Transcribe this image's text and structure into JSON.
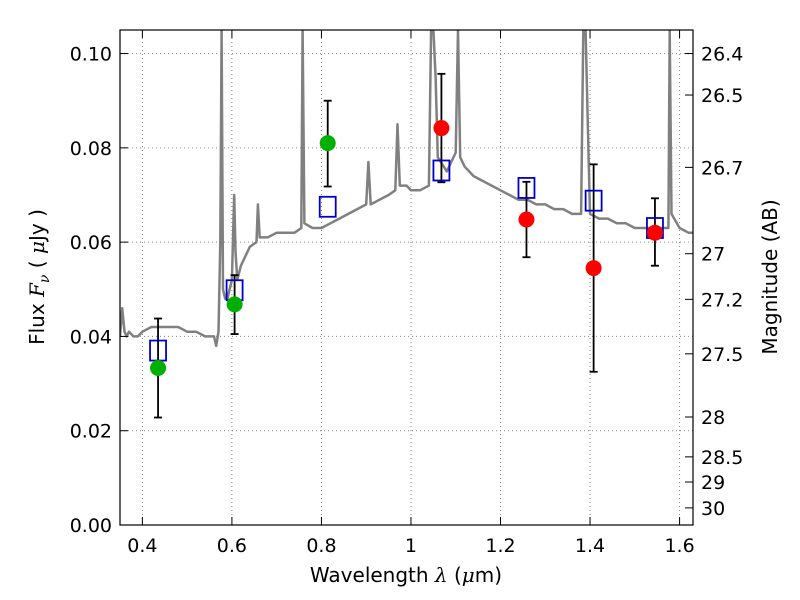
{
  "chart_data": {
    "type": "scatter",
    "xlabel": "Wavelength  λ (μm)",
    "ylabel": "Flux  F_ν  ( μJy )",
    "y2label": "Magnitude (AB)",
    "xlim": [
      0.35,
      1.63
    ],
    "ylim": [
      0.0,
      0.105
    ],
    "grid": true,
    "x_ticks": [
      "0.4",
      "0.6",
      "0.8",
      "1",
      "1.2",
      "1.4",
      "1.6"
    ],
    "x_tick_values": [
      0.4,
      0.6,
      0.8,
      1.0,
      1.2,
      1.4,
      1.6
    ],
    "y_ticks": [
      "0.00",
      "0.02",
      "0.04",
      "0.06",
      "0.08",
      "0.10"
    ],
    "y_tick_values": [
      0.0,
      0.02,
      0.04,
      0.06,
      0.08,
      0.1
    ],
    "mag_ticks": [
      "26.4",
      "26.5",
      "26.7",
      "27",
      "27.2",
      "27.5",
      "28",
      "28.5",
      "29",
      "30"
    ],
    "mag_tick_values": [
      26.4,
      26.5,
      26.7,
      27.0,
      27.2,
      27.5,
      28.0,
      28.5,
      29.0,
      30.0
    ],
    "colors": {
      "model": "#808080",
      "optical": "#00b000",
      "infrared": "#ff0000",
      "model_photometry": "#0000cc",
      "errorbar": "#000000",
      "grid": "#888888"
    },
    "series": [
      {
        "role": "observed-optical",
        "points": [
          {
            "x": 0.435,
            "y": 0.0333,
            "ylow": 0.0228,
            "yhigh": 0.0438
          },
          {
            "x": 0.606,
            "y": 0.0468,
            "ylow": 0.0405,
            "yhigh": 0.053
          },
          {
            "x": 0.814,
            "y": 0.081,
            "ylow": 0.0718,
            "yhigh": 0.09
          }
        ]
      },
      {
        "role": "observed-infrared",
        "points": [
          {
            "x": 1.068,
            "y": 0.0842,
            "ylow": 0.0727,
            "yhigh": 0.0957
          },
          {
            "x": 1.258,
            "y": 0.0648,
            "ylow": 0.0568,
            "yhigh": 0.0728
          },
          {
            "x": 1.408,
            "y": 0.0545,
            "ylow": 0.0325,
            "yhigh": 0.0765
          },
          {
            "x": 1.545,
            "y": 0.062,
            "ylow": 0.055,
            "yhigh": 0.0693
          }
        ]
      },
      {
        "role": "model-photometry",
        "points": [
          {
            "x": 0.435,
            "y": 0.037
          },
          {
            "x": 0.606,
            "y": 0.0498
          },
          {
            "x": 0.814,
            "y": 0.0675
          },
          {
            "x": 1.068,
            "y": 0.0752
          },
          {
            "x": 1.258,
            "y": 0.0715
          },
          {
            "x": 1.408,
            "y": 0.0688
          },
          {
            "x": 1.545,
            "y": 0.063
          }
        ]
      }
    ],
    "model_spectrum": {
      "x": [
        0.35,
        0.355,
        0.36,
        0.365,
        0.37,
        0.38,
        0.39,
        0.4,
        0.42,
        0.44,
        0.46,
        0.48,
        0.5,
        0.52,
        0.54,
        0.56,
        0.565,
        0.57,
        0.574,
        0.577,
        0.58,
        0.585,
        0.59,
        0.6,
        0.605,
        0.608,
        0.612,
        0.62,
        0.64,
        0.655,
        0.658,
        0.662,
        0.68,
        0.7,
        0.72,
        0.74,
        0.755,
        0.758,
        0.762,
        0.78,
        0.8,
        0.82,
        0.84,
        0.86,
        0.88,
        0.9,
        0.905,
        0.91,
        0.93,
        0.95,
        0.965,
        0.97,
        0.975,
        0.99,
        1.0,
        1.02,
        1.04,
        1.045,
        1.05,
        1.055,
        1.06,
        1.08,
        1.1,
        1.105,
        1.11,
        1.12,
        1.14,
        1.16,
        1.18,
        1.2,
        1.22,
        1.24,
        1.26,
        1.28,
        1.3,
        1.32,
        1.34,
        1.36,
        1.38,
        1.385,
        1.39,
        1.395,
        1.4,
        1.42,
        1.44,
        1.46,
        1.48,
        1.5,
        1.52,
        1.54,
        1.56,
        1.575,
        1.578,
        1.582,
        1.6,
        1.62,
        1.63
      ],
      "y": [
        0.04,
        0.046,
        0.041,
        0.04,
        0.041,
        0.04,
        0.04,
        0.041,
        0.042,
        0.042,
        0.042,
        0.042,
        0.041,
        0.041,
        0.04,
        0.04,
        0.038,
        0.041,
        0.06,
        0.105,
        0.05,
        0.048,
        0.048,
        0.052,
        0.07,
        0.058,
        0.052,
        0.055,
        0.059,
        0.06,
        0.068,
        0.061,
        0.061,
        0.062,
        0.062,
        0.062,
        0.063,
        0.105,
        0.064,
        0.063,
        0.063,
        0.064,
        0.065,
        0.066,
        0.067,
        0.068,
        0.077,
        0.068,
        0.069,
        0.07,
        0.071,
        0.085,
        0.072,
        0.072,
        0.071,
        0.071,
        0.072,
        0.105,
        0.105,
        0.095,
        0.078,
        0.075,
        0.079,
        0.105,
        0.078,
        0.076,
        0.074,
        0.073,
        0.072,
        0.071,
        0.07,
        0.069,
        0.069,
        0.068,
        0.068,
        0.067,
        0.067,
        0.066,
        0.066,
        0.105,
        0.105,
        0.085,
        0.066,
        0.065,
        0.065,
        0.064,
        0.064,
        0.063,
        0.063,
        0.063,
        0.063,
        0.063,
        0.105,
        0.066,
        0.063,
        0.062,
        0.062
      ]
    }
  }
}
